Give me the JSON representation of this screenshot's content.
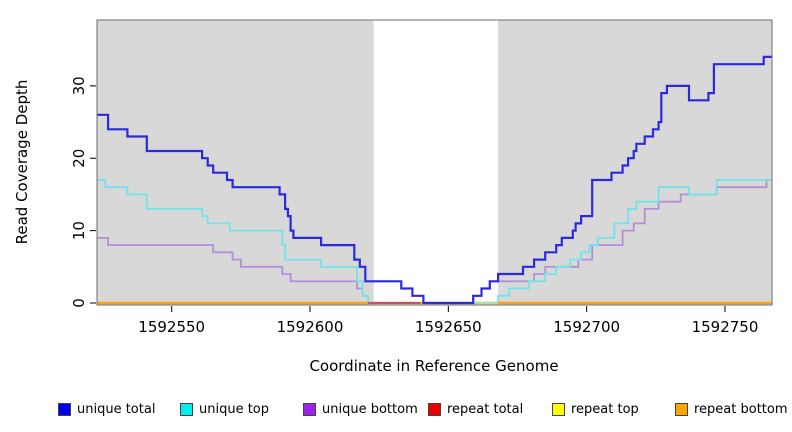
{
  "chart_data": {
    "type": "line",
    "step_style": "steps-post",
    "title": "",
    "xlabel": "Coordinate in Reference Genome",
    "ylabel": "Read Coverage Depth",
    "xlim": [
      1592523,
      1592767
    ],
    "ylim": [
      0,
      39.1
    ],
    "xticks": [
      1592550,
      1592600,
      1592650,
      1592700,
      1592750
    ],
    "yticks": [
      0,
      10,
      20,
      30
    ],
    "grid": false,
    "plot_bg": "#d8d8d8",
    "white_band": [
      1592623,
      1592668
    ],
    "series": [
      {
        "name": "unique total",
        "color": "#2b2bdc",
        "width": 2.2,
        "points": [
          [
            1592523,
            26
          ],
          [
            1592527,
            24
          ],
          [
            1592534,
            23
          ],
          [
            1592541,
            21
          ],
          [
            1592561,
            20
          ],
          [
            1592563,
            19
          ],
          [
            1592565,
            18
          ],
          [
            1592570,
            17
          ],
          [
            1592572,
            16
          ],
          [
            1592589,
            15
          ],
          [
            1592591,
            13
          ],
          [
            1592592,
            12
          ],
          [
            1592593,
            10
          ],
          [
            1592594,
            9
          ],
          [
            1592604,
            8
          ],
          [
            1592616,
            6
          ],
          [
            1592618,
            5
          ],
          [
            1592620,
            3
          ],
          [
            1592633,
            2
          ],
          [
            1592637,
            1
          ],
          [
            1592641,
            0
          ],
          [
            1592659,
            1
          ],
          [
            1592662,
            2
          ],
          [
            1592665,
            3
          ],
          [
            1592668,
            4
          ],
          [
            1592677,
            5
          ],
          [
            1592681,
            6
          ],
          [
            1592685,
            7
          ],
          [
            1592689,
            8
          ],
          [
            1592691,
            9
          ],
          [
            1592695,
            10
          ],
          [
            1592696,
            11
          ],
          [
            1592698,
            12
          ],
          [
            1592702,
            17
          ],
          [
            1592709,
            18
          ],
          [
            1592713,
            19
          ],
          [
            1592715,
            20
          ],
          [
            1592717,
            21
          ],
          [
            1592718,
            22
          ],
          [
            1592721,
            23
          ],
          [
            1592724,
            24
          ],
          [
            1592726,
            25
          ],
          [
            1592727,
            29
          ],
          [
            1592729,
            30
          ],
          [
            1592737,
            28
          ],
          [
            1592744,
            29
          ],
          [
            1592746,
            33
          ],
          [
            1592764,
            34
          ]
        ]
      },
      {
        "name": "unique top",
        "color": "#6fe4ec",
        "width": 1.8,
        "points": [
          [
            1592523,
            17
          ],
          [
            1592526,
            16
          ],
          [
            1592534,
            15
          ],
          [
            1592541,
            13
          ],
          [
            1592561,
            12
          ],
          [
            1592563,
            11
          ],
          [
            1592571,
            10
          ],
          [
            1592590,
            8
          ],
          [
            1592591,
            6
          ],
          [
            1592604,
            5
          ],
          [
            1592617,
            3
          ],
          [
            1592619,
            1
          ],
          [
            1592621,
            0
          ],
          [
            1592668,
            1
          ],
          [
            1592672,
            2
          ],
          [
            1592679,
            3
          ],
          [
            1592685,
            4
          ],
          [
            1592689,
            5
          ],
          [
            1592694,
            6
          ],
          [
            1592698,
            7
          ],
          [
            1592701,
            8
          ],
          [
            1592704,
            9
          ],
          [
            1592710,
            11
          ],
          [
            1592715,
            13
          ],
          [
            1592718,
            14
          ],
          [
            1592726,
            16
          ],
          [
            1592737,
            15
          ],
          [
            1592747,
            17
          ]
        ]
      },
      {
        "name": "unique bottom",
        "color": "#b48fd9",
        "width": 1.8,
        "points": [
          [
            1592523,
            9
          ],
          [
            1592527,
            8
          ],
          [
            1592565,
            7
          ],
          [
            1592572,
            6
          ],
          [
            1592575,
            5
          ],
          [
            1592590,
            4
          ],
          [
            1592593,
            3
          ],
          [
            1592617,
            2
          ],
          [
            1592619,
            1
          ],
          [
            1592621,
            0
          ],
          [
            1592659,
            1
          ],
          [
            1592662,
            2
          ],
          [
            1592665,
            3
          ],
          [
            1592681,
            4
          ],
          [
            1592685,
            5
          ],
          [
            1592697,
            6
          ],
          [
            1592702,
            8
          ],
          [
            1592713,
            10
          ],
          [
            1592717,
            11
          ],
          [
            1592721,
            13
          ],
          [
            1592726,
            14
          ],
          [
            1592734,
            15
          ],
          [
            1592747,
            16
          ],
          [
            1592765,
            17
          ]
        ]
      },
      {
        "name": "repeat total",
        "color": "#ee2222",
        "width": 2.0,
        "points": [
          [
            1592523,
            0
          ]
        ]
      },
      {
        "name": "repeat top",
        "color": "#ffff00",
        "width": 2.0,
        "points": [
          [
            1592523,
            0
          ]
        ]
      },
      {
        "name": "repeat bottom",
        "color": "#ffa013",
        "width": 2.4,
        "points": [
          [
            1592523,
            0
          ]
        ]
      }
    ],
    "zero_overlap_segments": [
      {
        "color": "#c4506e",
        "from": 1592621,
        "to": 1592640,
        "value": 0
      },
      {
        "color": "#a8dfae",
        "from": 1592659,
        "to": 1592668,
        "value": 0
      }
    ],
    "legend": [
      {
        "label": "unique total",
        "swatch": "#0000ee"
      },
      {
        "label": "unique top",
        "swatch": "#00eeee"
      },
      {
        "label": "unique bottom",
        "swatch": "#a020f0"
      },
      {
        "label": "repeat total",
        "swatch": "#ee0000"
      },
      {
        "label": "repeat top",
        "swatch": "#ffff00"
      },
      {
        "label": "repeat bottom",
        "swatch": "#ffa500"
      }
    ],
    "legend_position": "bottom"
  }
}
